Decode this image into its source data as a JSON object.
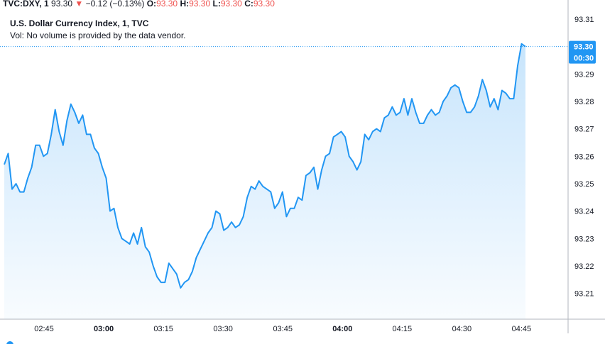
{
  "legend": {
    "symbol": "TVC:DXY, 1",
    "last": "93.30",
    "change": "−0.12 (−0.13%)",
    "open_label": "O:",
    "open": "93.30",
    "high_label": "H:",
    "high": "93.30",
    "low_label": "L:",
    "low": "93.30",
    "close_label": "C:",
    "close": "93.30",
    "title": "U.S. Dollar Currency Index, 1, TVC",
    "volume_note": "Vol: No volume is provided by the data vendor."
  },
  "colors": {
    "line": "#2196f3",
    "down": "#ef5350",
    "badge": "#2196f3"
  },
  "price_badge": {
    "price": "93.30",
    "countdown": "00:30"
  },
  "chart_data": {
    "type": "area",
    "y_ticks": [
      "93.31",
      "93.30",
      "93.29",
      "93.28",
      "93.27",
      "93.26",
      "93.25",
      "93.24",
      "93.23",
      "93.22",
      "93.21"
    ],
    "x_ticks": [
      {
        "label": "02:45",
        "bold": false
      },
      {
        "label": "03:00",
        "bold": true
      },
      {
        "label": "03:15",
        "bold": false
      },
      {
        "label": "03:30",
        "bold": false
      },
      {
        "label": "03:45",
        "bold": false
      },
      {
        "label": "04:00",
        "bold": true
      },
      {
        "label": "04:15",
        "bold": false
      },
      {
        "label": "04:30",
        "bold": false
      },
      {
        "label": "04:45",
        "bold": false
      }
    ],
    "ylim": [
      93.205,
      93.313
    ],
    "x_start": "02:35",
    "x_end": "04:46",
    "values": [
      93.257,
      93.261,
      93.248,
      93.25,
      93.247,
      93.247,
      93.252,
      93.256,
      93.264,
      93.264,
      93.26,
      93.261,
      93.268,
      93.277,
      93.269,
      93.264,
      93.273,
      93.279,
      93.276,
      93.272,
      93.275,
      93.268,
      93.268,
      93.263,
      93.261,
      93.256,
      93.252,
      93.24,
      93.241,
      93.234,
      93.23,
      93.229,
      93.228,
      93.232,
      93.228,
      93.234,
      93.227,
      93.225,
      93.22,
      93.216,
      93.214,
      93.214,
      93.221,
      93.219,
      93.217,
      93.212,
      93.214,
      93.215,
      93.218,
      93.223,
      93.226,
      93.229,
      93.232,
      93.234,
      93.24,
      93.239,
      93.233,
      93.234,
      93.236,
      93.234,
      93.235,
      93.238,
      93.245,
      93.249,
      93.248,
      93.251,
      93.249,
      93.248,
      93.247,
      93.241,
      93.243,
      93.247,
      93.238,
      93.241,
      93.241,
      93.245,
      93.244,
      93.253,
      93.254,
      93.256,
      93.248,
      93.255,
      93.26,
      93.261,
      93.267,
      93.268,
      93.269,
      93.267,
      93.26,
      93.258,
      93.255,
      93.258,
      93.268,
      93.266,
      93.269,
      93.27,
      93.269,
      93.274,
      93.275,
      93.278,
      93.275,
      93.276,
      93.281,
      93.275,
      93.281,
      93.276,
      93.272,
      93.272,
      93.275,
      93.277,
      93.275,
      93.276,
      93.28,
      93.282,
      93.285,
      93.286,
      93.285,
      93.28,
      93.276,
      93.276,
      93.278,
      93.282,
      93.288,
      93.284,
      93.278,
      93.281,
      93.277,
      93.284,
      93.283,
      93.281,
      93.281,
      93.293,
      93.301,
      93.3
    ]
  }
}
